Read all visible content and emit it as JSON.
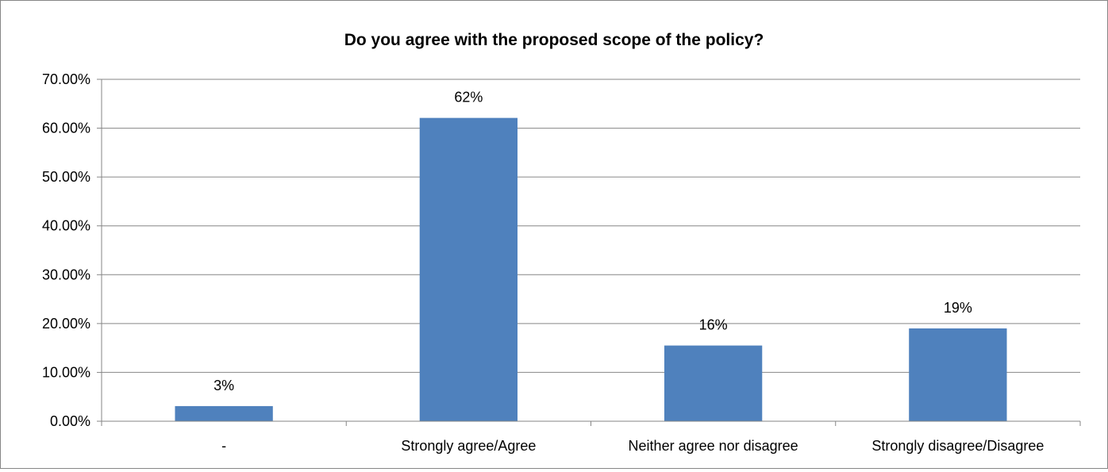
{
  "chart_data": {
    "type": "bar",
    "title": "Do you agree with the proposed scope of the policy?",
    "xlabel": "",
    "ylabel": "",
    "categories": [
      "-",
      "Strongly agree/Agree",
      "Neither agree nor disagree",
      "Strongly disagree/Disagree"
    ],
    "values": [
      0.031,
      0.621,
      0.155,
      0.19
    ],
    "data_labels": [
      "3%",
      "62%",
      "16%",
      "19%"
    ],
    "ylim": [
      0,
      0.7
    ],
    "yticks": [
      0,
      0.1,
      0.2,
      0.3,
      0.4,
      0.5,
      0.6,
      0.7
    ],
    "ytick_labels": [
      "0.00%",
      "10.00%",
      "20.00%",
      "30.00%",
      "40.00%",
      "50.00%",
      "60.00%",
      "70.00%"
    ],
    "grid": true,
    "legend": "none",
    "bar_color": "#4F81BD",
    "grid_color": "#868686"
  }
}
